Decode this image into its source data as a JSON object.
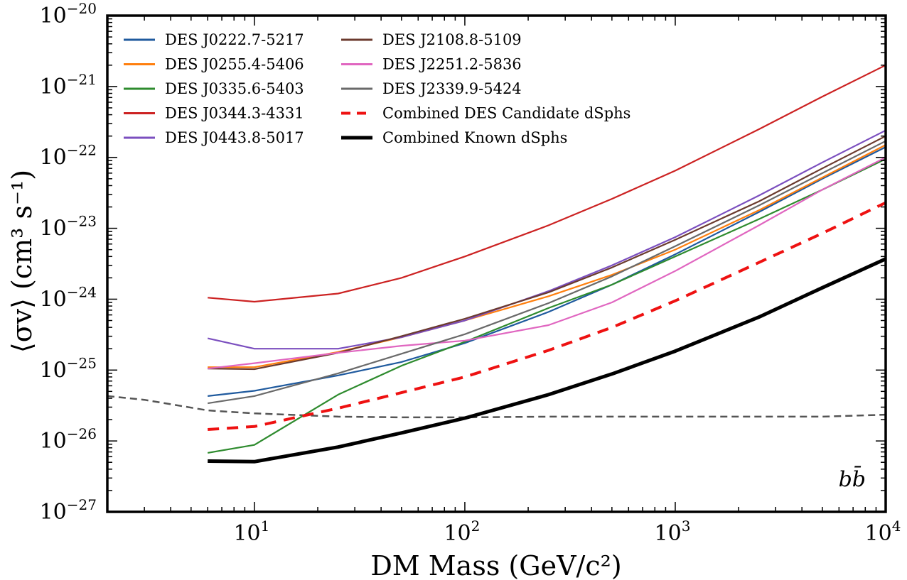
{
  "chart_data": {
    "type": "line",
    "xscale": "log",
    "yscale": "log",
    "xlim": [
      2,
      10000
    ],
    "ylim": [
      1e-27,
      1e-20
    ],
    "xlabel": "DM Mass (GeV/c²)",
    "ylabel": "⟨σv⟩ (cm³ s⁻¹)",
    "annotation": "bb̄",
    "legend_position": "top-left",
    "x_ticks": [
      {
        "base": "10",
        "exp": "1",
        "value": 10
      },
      {
        "base": "10",
        "exp": "2",
        "value": 100
      },
      {
        "base": "10",
        "exp": "3",
        "value": 1000
      },
      {
        "base": "10",
        "exp": "4",
        "value": 10000
      }
    ],
    "y_ticks": [
      {
        "base": "10",
        "exp": "−27",
        "value": 1e-27
      },
      {
        "base": "10",
        "exp": "−26",
        "value": 1e-26
      },
      {
        "base": "10",
        "exp": "−25",
        "value": 1e-25
      },
      {
        "base": "10",
        "exp": "−24",
        "value": 1e-24
      },
      {
        "base": "10",
        "exp": "−23",
        "value": 1e-23
      },
      {
        "base": "10",
        "exp": "−22",
        "value": 1e-22
      },
      {
        "base": "10",
        "exp": "−21",
        "value": 1e-21
      },
      {
        "base": "10",
        "exp": "−20",
        "value": 1e-20
      }
    ],
    "series": [
      {
        "name": "DES J0222.7-5217",
        "color": "#1f5a9e",
        "style": "solid",
        "x": [
          6,
          10,
          25,
          50,
          100,
          250,
          500,
          1000,
          2500,
          5000,
          10000
        ],
        "y": [
          4.3e-26,
          5.1e-26,
          8.4e-26,
          1.3e-25,
          2.4e-25,
          6.6e-25,
          1.6e-24,
          4.3e-24,
          1.7e-23,
          5e-23,
          1.4e-22
        ]
      },
      {
        "name": "DES J0255.4-5406",
        "color": "#ff7f0e",
        "style": "solid",
        "x": [
          6,
          10,
          25,
          50,
          100,
          250,
          500,
          1000,
          2500,
          5000,
          10000
        ],
        "y": [
          1.1e-25,
          1.1e-25,
          1.8e-25,
          2.9e-25,
          5e-25,
          1.1e-24,
          2.2e-24,
          5e-24,
          1.8e-23,
          5.2e-23,
          1.5e-22
        ]
      },
      {
        "name": "DES J0335.6-5403",
        "color": "#2e8b2e",
        "style": "solid",
        "x": [
          6,
          10,
          25,
          50,
          100,
          250,
          500,
          1000,
          2500,
          5000,
          10000
        ],
        "y": [
          6.8e-27,
          8.8e-27,
          4.5e-26,
          1.15e-25,
          2.5e-25,
          7.5e-25,
          1.6e-24,
          4e-24,
          1.35e-23,
          3.5e-23,
          9.5e-23
        ]
      },
      {
        "name": "DES J0344.3-4331",
        "color": "#cc2222",
        "style": "solid",
        "x": [
          6,
          10,
          25,
          50,
          100,
          250,
          500,
          1000,
          2500,
          5000,
          10000
        ],
        "y": [
          1.05e-24,
          9.2e-25,
          1.2e-24,
          2e-24,
          4e-24,
          1.1e-23,
          2.6e-23,
          6.5e-23,
          2.5e-22,
          7.2e-22,
          2e-21
        ]
      },
      {
        "name": "DES J0443.8-5017",
        "color": "#7b4fbf",
        "style": "solid",
        "x": [
          6,
          10,
          25,
          50,
          100,
          250,
          500,
          1000,
          2500,
          5000,
          10000
        ],
        "y": [
          2.8e-25,
          2e-25,
          2e-25,
          2.9e-25,
          5e-25,
          1.3e-24,
          3e-24,
          7.5e-24,
          2.9e-23,
          8.5e-23,
          2.4e-22
        ]
      },
      {
        "name": "DES J2108.8-5109",
        "color": "#6b3a2e",
        "style": "solid",
        "x": [
          6,
          10,
          25,
          50,
          100,
          250,
          500,
          1000,
          2500,
          5000,
          10000
        ],
        "y": [
          1.05e-25,
          1.03e-25,
          1.75e-25,
          3e-25,
          5.3e-25,
          1.25e-24,
          2.8e-24,
          6.9e-24,
          2.4e-23,
          7e-23,
          2e-22
        ]
      },
      {
        "name": "DES J2251.2-5836",
        "color": "#e066c0",
        "style": "solid",
        "x": [
          6,
          10,
          25,
          50,
          100,
          250,
          500,
          1000,
          2500,
          5000,
          10000
        ],
        "y": [
          1.05e-25,
          1.25e-25,
          1.75e-25,
          2.2e-25,
          2.6e-25,
          4.3e-25,
          9e-25,
          2.5e-24,
          1.1e-23,
          3.5e-23,
          1e-22
        ]
      },
      {
        "name": "DES J2339.9-5424",
        "color": "#6a6a6a",
        "style": "solid",
        "x": [
          6,
          10,
          25,
          50,
          100,
          250,
          500,
          1000,
          2500,
          5000,
          10000
        ],
        "y": [
          3.4e-26,
          4.3e-26,
          9e-26,
          1.7e-25,
          3.2e-25,
          8.8e-25,
          2.1e-24,
          5.6e-24,
          2.1e-23,
          6e-23,
          1.7e-22
        ]
      },
      {
        "name": "Combined DES Candidate dSphs",
        "color": "#ee1111",
        "style": "dashed",
        "x": [
          6,
          10,
          25,
          50,
          100,
          250,
          500,
          1000,
          2500,
          5000,
          10000
        ],
        "y": [
          1.45e-26,
          1.6e-26,
          2.9e-26,
          4.8e-26,
          8e-26,
          1.9e-25,
          4e-25,
          9.5e-25,
          3.3e-24,
          8.5e-24,
          2.3e-23
        ]
      },
      {
        "name": "Combined Known dSphs",
        "color": "#000000",
        "style": "thick",
        "x": [
          6,
          10,
          25,
          50,
          100,
          250,
          500,
          1000,
          2500,
          5000,
          10000
        ],
        "y": [
          5.2e-27,
          5.1e-27,
          8.2e-27,
          1.3e-26,
          2.1e-26,
          4.5e-26,
          8.8e-26,
          1.85e-25,
          5.6e-25,
          1.45e-24,
          3.7e-24
        ]
      },
      {
        "name": "",
        "color": "#555555",
        "style": "gray-dashed",
        "x": [
          2,
          3,
          6,
          10,
          25,
          50,
          100,
          250,
          500,
          1000,
          2500,
          5000,
          10000
        ],
        "y": [
          4.3e-26,
          3.8e-26,
          2.7e-26,
          2.45e-26,
          2.2e-26,
          2.15e-26,
          2.15e-26,
          2.2e-26,
          2.2e-26,
          2.2e-26,
          2.2e-26,
          2.2e-26,
          2.35e-26
        ]
      }
    ]
  }
}
